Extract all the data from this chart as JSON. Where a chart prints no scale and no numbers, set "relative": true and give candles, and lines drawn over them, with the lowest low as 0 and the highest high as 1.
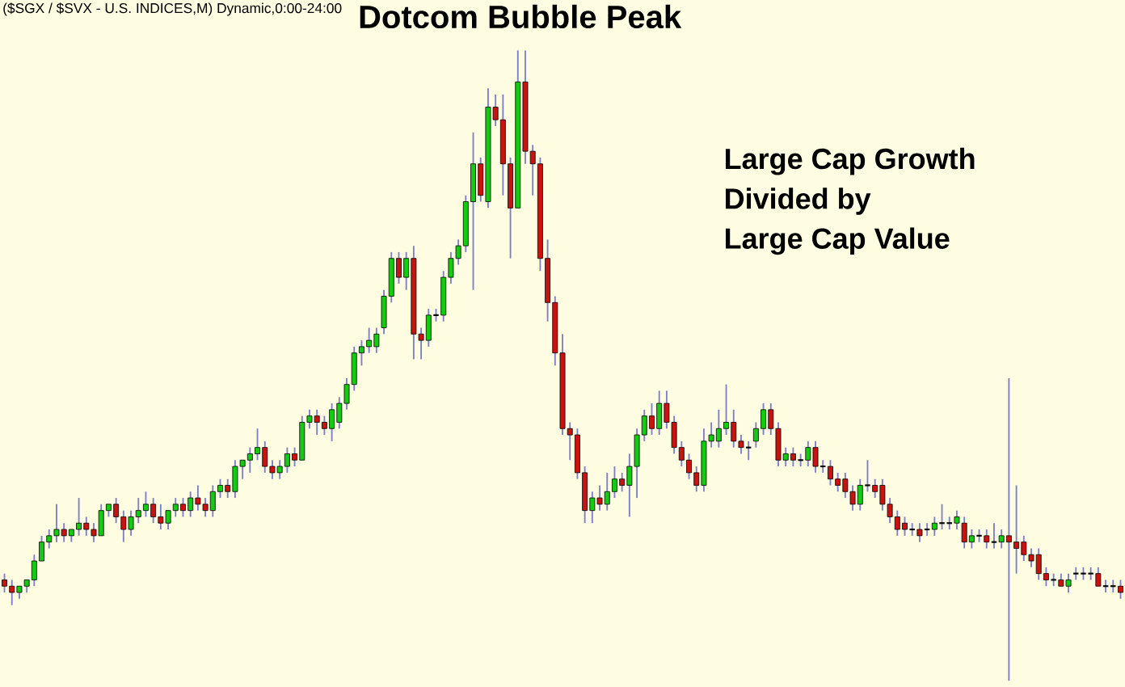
{
  "chart_data": {
    "type": "candlestick",
    "title": "Dotcom Bubble Peak",
    "relative": true,
    "annotations": [
      "($SGX / $SVX - U.S. INDICES,M) Dynamic,0:00-24:00",
      "Large Cap Growth",
      "Divided by",
      "Large Cap Value"
    ],
    "categories": [
      null,
      null,
      null,
      null,
      null,
      null,
      null,
      null,
      null,
      null,
      null,
      null,
      null,
      null,
      null,
      null,
      null,
      null,
      null,
      null,
      null,
      null,
      null,
      null,
      null,
      null,
      null,
      null,
      null,
      null,
      null,
      null,
      null,
      null,
      null,
      null,
      null,
      null,
      null,
      null,
      null,
      null,
      null,
      null,
      null,
      null,
      null,
      null,
      null,
      null,
      null,
      null,
      null,
      null,
      null,
      null,
      null,
      null,
      null,
      null,
      null,
      null,
      null,
      null,
      null,
      null,
      null,
      null,
      null,
      null,
      null,
      null,
      null,
      null,
      null,
      null,
      null,
      null,
      null,
      null,
      null,
      null,
      null,
      null,
      null,
      null,
      null,
      null,
      null,
      null,
      null,
      null,
      null,
      null,
      null,
      null,
      null,
      null,
      null,
      null,
      null,
      null,
      null,
      null,
      null,
      null,
      null,
      null,
      null,
      null,
      null,
      null,
      null,
      null,
      null,
      null,
      null,
      null,
      null,
      null,
      null,
      null,
      null,
      null,
      null,
      null,
      null,
      null,
      null,
      null,
      null,
      null,
      null,
      null,
      null,
      null,
      null,
      null,
      null,
      null,
      null,
      null,
      null,
      null,
      null,
      null,
      null,
      null,
      null,
      null,
      null
    ],
    "ohlc": [
      [
        0.16,
        0.17,
        0.14,
        0.15
      ],
      [
        0.15,
        0.16,
        0.12,
        0.14
      ],
      [
        0.14,
        0.15,
        0.13,
        0.15
      ],
      [
        0.15,
        0.16,
        0.14,
        0.16
      ],
      [
        0.16,
        0.2,
        0.15,
        0.19
      ],
      [
        0.19,
        0.23,
        0.19,
        0.22
      ],
      [
        0.22,
        0.24,
        0.21,
        0.23
      ],
      [
        0.23,
        0.28,
        0.22,
        0.24
      ],
      [
        0.24,
        0.25,
        0.22,
        0.23
      ],
      [
        0.23,
        0.24,
        0.22,
        0.24
      ],
      [
        0.24,
        0.29,
        0.23,
        0.25
      ],
      [
        0.25,
        0.26,
        0.23,
        0.24
      ],
      [
        0.24,
        0.25,
        0.22,
        0.23
      ],
      [
        0.23,
        0.28,
        0.23,
        0.27
      ],
      [
        0.27,
        0.28,
        0.26,
        0.28
      ],
      [
        0.28,
        0.29,
        0.25,
        0.26
      ],
      [
        0.26,
        0.27,
        0.22,
        0.24
      ],
      [
        0.24,
        0.27,
        0.23,
        0.26
      ],
      [
        0.26,
        0.29,
        0.25,
        0.27
      ],
      [
        0.27,
        0.3,
        0.26,
        0.28
      ],
      [
        0.28,
        0.29,
        0.25,
        0.26
      ],
      [
        0.26,
        0.28,
        0.24,
        0.25
      ],
      [
        0.25,
        0.27,
        0.24,
        0.27
      ],
      [
        0.27,
        0.29,
        0.26,
        0.28
      ],
      [
        0.28,
        0.29,
        0.26,
        0.27
      ],
      [
        0.27,
        0.3,
        0.26,
        0.29
      ],
      [
        0.29,
        0.31,
        0.27,
        0.28
      ],
      [
        0.28,
        0.29,
        0.26,
        0.27
      ],
      [
        0.27,
        0.31,
        0.26,
        0.3
      ],
      [
        0.3,
        0.32,
        0.29,
        0.31
      ],
      [
        0.31,
        0.32,
        0.29,
        0.3
      ],
      [
        0.3,
        0.35,
        0.29,
        0.34
      ],
      [
        0.34,
        0.35,
        0.32,
        0.35
      ],
      [
        0.35,
        0.37,
        0.33,
        0.36
      ],
      [
        0.36,
        0.4,
        0.35,
        0.37
      ],
      [
        0.37,
        0.38,
        0.33,
        0.34
      ],
      [
        0.34,
        0.35,
        0.32,
        0.33
      ],
      [
        0.33,
        0.35,
        0.32,
        0.34
      ],
      [
        0.34,
        0.37,
        0.33,
        0.36
      ],
      [
        0.36,
        0.37,
        0.34,
        0.35
      ],
      [
        0.35,
        0.42,
        0.35,
        0.41
      ],
      [
        0.41,
        0.43,
        0.4,
        0.42
      ],
      [
        0.42,
        0.43,
        0.39,
        0.41
      ],
      [
        0.41,
        0.42,
        0.39,
        0.4
      ],
      [
        0.4,
        0.44,
        0.38,
        0.43
      ],
      [
        0.41,
        0.45,
        0.4,
        0.44
      ],
      [
        0.44,
        0.48,
        0.43,
        0.47
      ],
      [
        0.47,
        0.53,
        0.46,
        0.52
      ],
      [
        0.52,
        0.54,
        0.5,
        0.53
      ],
      [
        0.53,
        0.56,
        0.52,
        0.54
      ],
      [
        0.53,
        0.56,
        0.52,
        0.55
      ],
      [
        0.56,
        0.62,
        0.55,
        0.61
      ],
      [
        0.61,
        0.68,
        0.6,
        0.67
      ],
      [
        0.67,
        0.68,
        0.63,
        0.64
      ],
      [
        0.64,
        0.68,
        0.62,
        0.67
      ],
      [
        0.67,
        0.69,
        0.51,
        0.55
      ],
      [
        0.55,
        0.56,
        0.51,
        0.54
      ],
      [
        0.54,
        0.59,
        0.53,
        0.58
      ],
      [
        0.58,
        0.59,
        0.57,
        0.58
      ],
      [
        0.58,
        0.65,
        0.57,
        0.64
      ],
      [
        0.64,
        0.68,
        0.63,
        0.67
      ],
      [
        0.67,
        0.7,
        0.66,
        0.69
      ],
      [
        0.69,
        0.77,
        0.68,
        0.76
      ],
      [
        0.76,
        0.87,
        0.62,
        0.82
      ],
      [
        0.82,
        0.83,
        0.76,
        0.77
      ],
      [
        0.76,
        0.94,
        0.75,
        0.91
      ],
      [
        0.91,
        0.93,
        0.88,
        0.89
      ],
      [
        0.89,
        0.93,
        0.77,
        0.82
      ],
      [
        0.82,
        0.83,
        0.67,
        0.75
      ],
      [
        0.75,
        1.0,
        0.75,
        0.95
      ],
      [
        0.95,
        1.0,
        0.82,
        0.84
      ],
      [
        0.84,
        0.85,
        0.77,
        0.82
      ],
      [
        0.82,
        0.83,
        0.65,
        0.67
      ],
      [
        0.67,
        0.7,
        0.57,
        0.6
      ],
      [
        0.6,
        0.61,
        0.5,
        0.52
      ],
      [
        0.52,
        0.55,
        0.39,
        0.4
      ],
      [
        0.4,
        0.41,
        0.35,
        0.39
      ],
      [
        0.39,
        0.4,
        0.32,
        0.33
      ],
      [
        0.33,
        0.34,
        0.25,
        0.27
      ],
      [
        0.27,
        0.3,
        0.25,
        0.29
      ],
      [
        0.29,
        0.31,
        0.27,
        0.28
      ],
      [
        0.28,
        0.33,
        0.27,
        0.3
      ],
      [
        0.3,
        0.34,
        0.29,
        0.32
      ],
      [
        0.32,
        0.33,
        0.3,
        0.31
      ],
      [
        0.31,
        0.36,
        0.26,
        0.34
      ],
      [
        0.34,
        0.4,
        0.29,
        0.39
      ],
      [
        0.39,
        0.43,
        0.38,
        0.42
      ],
      [
        0.42,
        0.44,
        0.39,
        0.4
      ],
      [
        0.4,
        0.46,
        0.39,
        0.44
      ],
      [
        0.44,
        0.46,
        0.4,
        0.41
      ],
      [
        0.41,
        0.42,
        0.36,
        0.37
      ],
      [
        0.37,
        0.38,
        0.34,
        0.35
      ],
      [
        0.35,
        0.36,
        0.32,
        0.33
      ],
      [
        0.33,
        0.34,
        0.3,
        0.31
      ],
      [
        0.31,
        0.4,
        0.3,
        0.38
      ],
      [
        0.38,
        0.41,
        0.37,
        0.39
      ],
      [
        0.38,
        0.43,
        0.37,
        0.4
      ],
      [
        0.4,
        0.47,
        0.39,
        0.41
      ],
      [
        0.41,
        0.43,
        0.37,
        0.38
      ],
      [
        0.38,
        0.39,
        0.36,
        0.37
      ],
      [
        0.37,
        0.38,
        0.35,
        0.37
      ],
      [
        0.38,
        0.41,
        0.37,
        0.4
      ],
      [
        0.4,
        0.44,
        0.39,
        0.43
      ],
      [
        0.43,
        0.44,
        0.39,
        0.4
      ],
      [
        0.4,
        0.41,
        0.34,
        0.35
      ],
      [
        0.35,
        0.37,
        0.34,
        0.36
      ],
      [
        0.36,
        0.37,
        0.34,
        0.35
      ],
      [
        0.35,
        0.36,
        0.34,
        0.35
      ],
      [
        0.35,
        0.38,
        0.34,
        0.37
      ],
      [
        0.37,
        0.38,
        0.33,
        0.34
      ],
      [
        0.34,
        0.35,
        0.33,
        0.34
      ],
      [
        0.34,
        0.35,
        0.31,
        0.32
      ],
      [
        0.32,
        0.33,
        0.3,
        0.31
      ],
      [
        0.32,
        0.33,
        0.29,
        0.3
      ],
      [
        0.3,
        0.31,
        0.27,
        0.28
      ],
      [
        0.28,
        0.32,
        0.27,
        0.31
      ],
      [
        0.31,
        0.35,
        0.3,
        0.31
      ],
      [
        0.31,
        0.32,
        0.29,
        0.3
      ],
      [
        0.31,
        0.32,
        0.27,
        0.28
      ],
      [
        0.28,
        0.29,
        0.25,
        0.26
      ],
      [
        0.26,
        0.27,
        0.23,
        0.24
      ],
      [
        0.25,
        0.26,
        0.23,
        0.24
      ],
      [
        0.24,
        0.25,
        0.23,
        0.24
      ],
      [
        0.24,
        0.25,
        0.22,
        0.23
      ],
      [
        0.24,
        0.25,
        0.23,
        0.24
      ],
      [
        0.24,
        0.26,
        0.23,
        0.25
      ],
      [
        0.25,
        0.28,
        0.24,
        0.25
      ],
      [
        0.25,
        0.26,
        0.24,
        0.25
      ],
      [
        0.25,
        0.27,
        0.24,
        0.26
      ],
      [
        0.25,
        0.26,
        0.21,
        0.22
      ],
      [
        0.22,
        0.24,
        0.21,
        0.23
      ],
      [
        0.23,
        0.24,
        0.22,
        0.23
      ],
      [
        0.23,
        0.24,
        0.21,
        0.22
      ],
      [
        0.22,
        0.25,
        0.21,
        0.22
      ],
      [
        0.22,
        0.24,
        0.21,
        0.23
      ],
      [
        0.23,
        0.48,
        0.0,
        0.22
      ],
      [
        0.22,
        0.31,
        0.17,
        0.21
      ],
      [
        0.22,
        0.23,
        0.19,
        0.2
      ],
      [
        0.2,
        0.21,
        0.18,
        0.19
      ],
      [
        0.2,
        0.21,
        0.16,
        0.17
      ],
      [
        0.17,
        0.18,
        0.15,
        0.16
      ],
      [
        0.16,
        0.17,
        0.15,
        0.16
      ],
      [
        0.16,
        0.17,
        0.15,
        0.15
      ],
      [
        0.15,
        0.17,
        0.14,
        0.16
      ],
      [
        0.17,
        0.18,
        0.16,
        0.17
      ],
      [
        0.17,
        0.18,
        0.16,
        0.17
      ],
      [
        0.17,
        0.18,
        0.16,
        0.17
      ],
      [
        0.17,
        0.18,
        0.15,
        0.15
      ],
      [
        0.15,
        0.16,
        0.14,
        0.15
      ],
      [
        0.15,
        0.16,
        0.14,
        0.15
      ],
      [
        0.15,
        0.16,
        0.13,
        0.14
      ]
    ]
  }
}
